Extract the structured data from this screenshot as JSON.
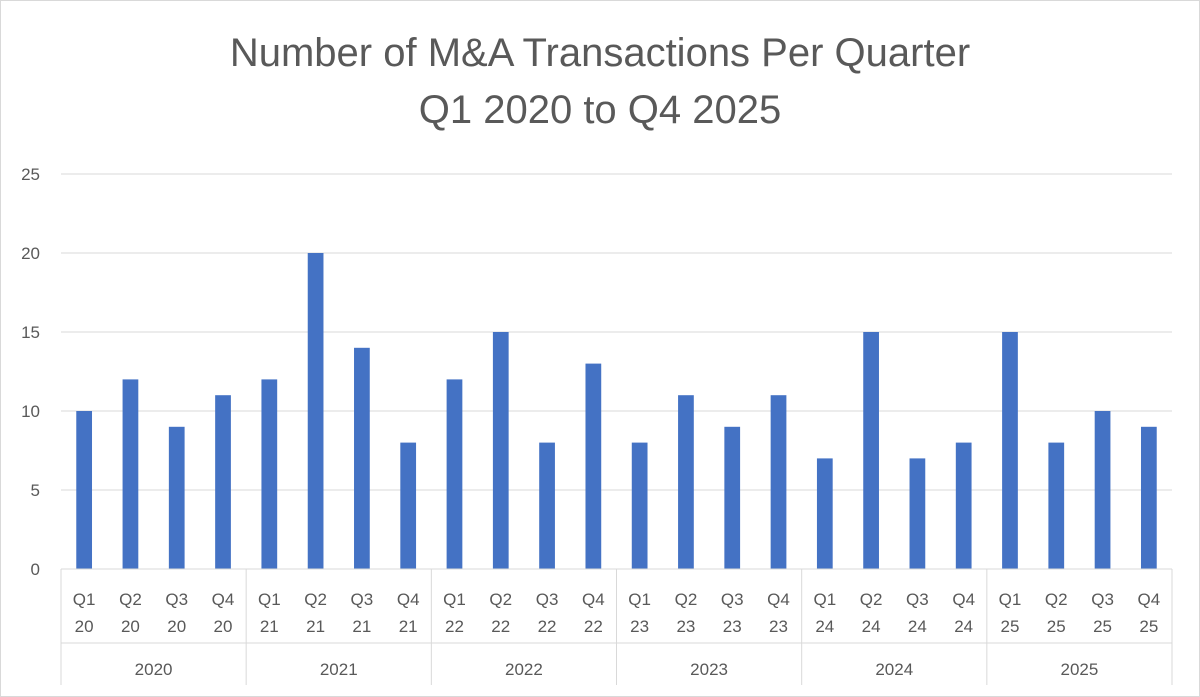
{
  "chart_data": {
    "type": "bar",
    "title": "Number of M&A Transactions Per Quarter",
    "subtitle": "Q1 2020 to Q4 2025",
    "xlabel": "",
    "ylabel": "",
    "ylim": [
      0,
      25
    ],
    "yticks": [
      0,
      5,
      10,
      15,
      20,
      25
    ],
    "grid": true,
    "legend": "none",
    "bar_color": "#4472c4",
    "groups": [
      "2020",
      "2021",
      "2022",
      "2023",
      "2024",
      "2025"
    ],
    "categories": [
      [
        "Q1",
        "20"
      ],
      [
        "Q2",
        "20"
      ],
      [
        "Q3",
        "20"
      ],
      [
        "Q4",
        "20"
      ],
      [
        "Q1",
        "21"
      ],
      [
        "Q2",
        "21"
      ],
      [
        "Q3",
        "21"
      ],
      [
        "Q4",
        "21"
      ],
      [
        "Q1",
        "22"
      ],
      [
        "Q2",
        "22"
      ],
      [
        "Q3",
        "22"
      ],
      [
        "Q4",
        "22"
      ],
      [
        "Q1",
        "23"
      ],
      [
        "Q2",
        "23"
      ],
      [
        "Q3",
        "23"
      ],
      [
        "Q4",
        "23"
      ],
      [
        "Q1",
        "24"
      ],
      [
        "Q2",
        "24"
      ],
      [
        "Q3",
        "24"
      ],
      [
        "Q4",
        "24"
      ],
      [
        "Q1",
        "25"
      ],
      [
        "Q2",
        "25"
      ],
      [
        "Q3",
        "25"
      ],
      [
        "Q4",
        "25"
      ]
    ],
    "values": [
      10,
      12,
      9,
      11,
      12,
      20,
      14,
      8,
      12,
      15,
      8,
      13,
      8,
      11,
      9,
      11,
      7,
      15,
      7,
      8,
      15,
      8,
      10,
      9
    ]
  }
}
